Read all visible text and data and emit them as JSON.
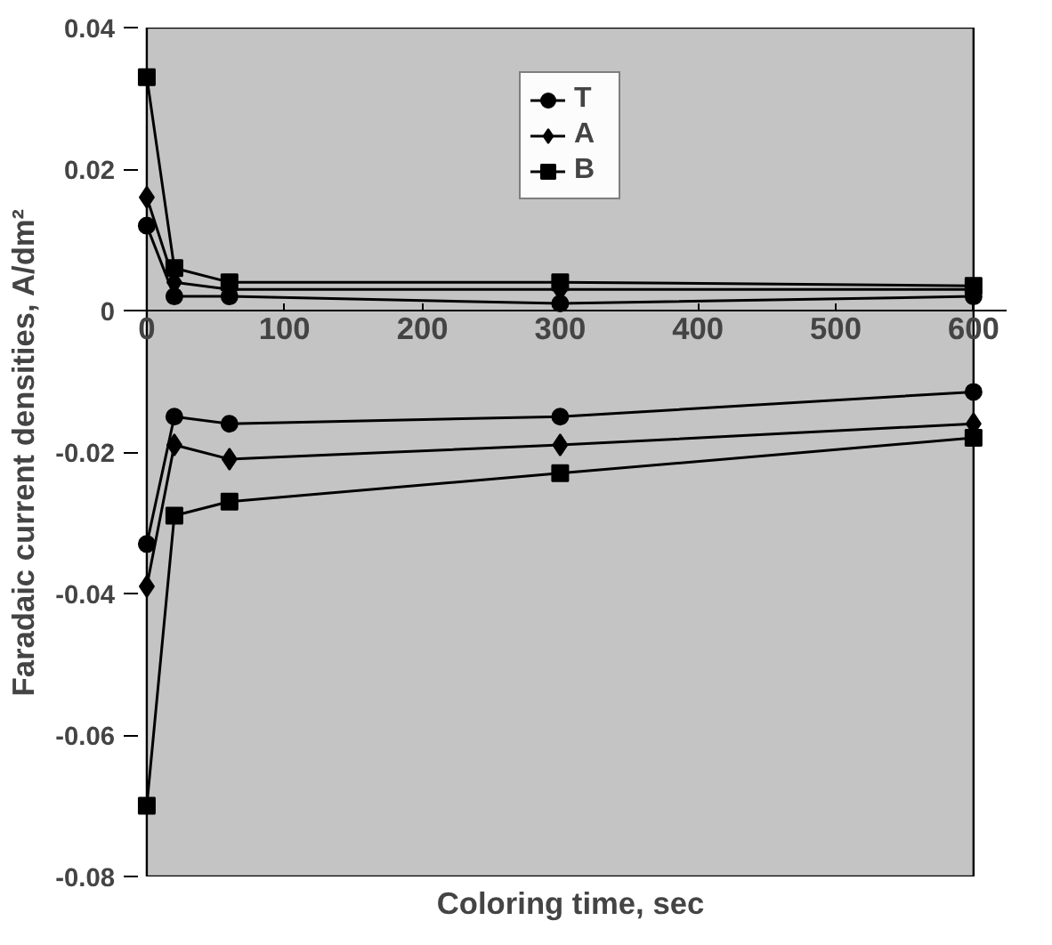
{
  "chart_data": {
    "type": "line",
    "xlabel": "Coloring time, sec",
    "ylabel": "Faradaic current densities, A/dm²",
    "x": [
      0,
      20,
      60,
      300,
      600
    ],
    "xlim": [
      0,
      600
    ],
    "xticks": [
      0,
      100,
      200,
      300,
      400,
      500,
      600
    ],
    "ylim": [
      -0.08,
      0.04
    ],
    "yticks": [
      {
        "value": 0.04,
        "label": "0.04"
      },
      {
        "value": 0.02,
        "label": "0.02"
      },
      {
        "value": 0,
        "label": "0"
      },
      {
        "value": -0.02,
        "label": "-0.02"
      },
      {
        "value": -0.04,
        "label": "-0.04"
      },
      {
        "value": -0.06,
        "label": "-0.06"
      },
      {
        "value": -0.08,
        "label": "-0.08"
      }
    ],
    "series": [
      {
        "name": "T",
        "color": "#000000",
        "marker": "circle",
        "values": [
          0.012,
          0.002,
          0.002,
          0.001,
          0.002
        ]
      },
      {
        "name": "A",
        "color": "#000000",
        "marker": "diamond",
        "values": [
          0.016,
          0.004,
          0.003,
          0.003,
          0.003
        ]
      },
      {
        "name": "B",
        "color": "#000000",
        "marker": "square",
        "values": [
          0.033,
          0.006,
          0.004,
          0.004,
          0.0035
        ]
      },
      {
        "color": "#000000",
        "marker": "circle",
        "values": [
          -0.033,
          -0.015,
          -0.016,
          -0.015,
          -0.0115
        ]
      },
      {
        "color": "#000000",
        "marker": "diamond",
        "values": [
          -0.039,
          -0.019,
          -0.021,
          -0.019,
          -0.016
        ]
      },
      {
        "color": "#000000",
        "marker": "square",
        "values": [
          -0.07,
          -0.029,
          -0.027,
          -0.023,
          -0.018
        ]
      }
    ],
    "legend": "top",
    "grid": false
  }
}
